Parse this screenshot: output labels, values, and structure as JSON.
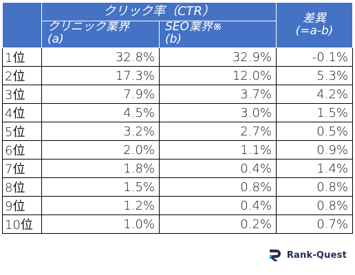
{
  "table": {
    "header": {
      "group_label": "クリック率（CTR）",
      "col_a": [
        "クリニック業界",
        "(a)"
      ],
      "col_b": [
        "SEO業界※",
        "(b)"
      ],
      "col_diff": [
        "差異",
        "(=a-b)"
      ]
    },
    "rows": [
      {
        "rank": "1位",
        "a": "32.8%",
        "b": "32.9%",
        "diff": "-0.1%"
      },
      {
        "rank": "2位",
        "a": "17.3%",
        "b": "12.0%",
        "diff": "5.3%"
      },
      {
        "rank": "3位",
        "a": "7.9%",
        "b": "3.7%",
        "diff": "4.2%"
      },
      {
        "rank": "4位",
        "a": "4.5%",
        "b": "3.0%",
        "diff": "1.5%"
      },
      {
        "rank": "5位",
        "a": "3.2%",
        "b": "2.7%",
        "diff": "0.5%"
      },
      {
        "rank": "6位",
        "a": "2.0%",
        "b": "1.1%",
        "diff": "0.9%"
      },
      {
        "rank": "7位",
        "a": "1.8%",
        "b": "0.4%",
        "diff": "1.4%"
      },
      {
        "rank": "8位",
        "a": "1.5%",
        "b": "0.8%",
        "diff": "0.8%"
      },
      {
        "rank": "9位",
        "a": "1.2%",
        "b": "0.4%",
        "diff": "0.8%"
      },
      {
        "rank": "10位",
        "a": "1.0%",
        "b": "0.2%",
        "diff": "0.7%"
      }
    ]
  },
  "logo": {
    "text": "Rank-Quest",
    "icon": "rank-quest-logo-icon",
    "color": "#1f2d4e"
  },
  "colors": {
    "header_bg": "#4472c4",
    "header_text": "#ffffff",
    "border": "#000000"
  }
}
